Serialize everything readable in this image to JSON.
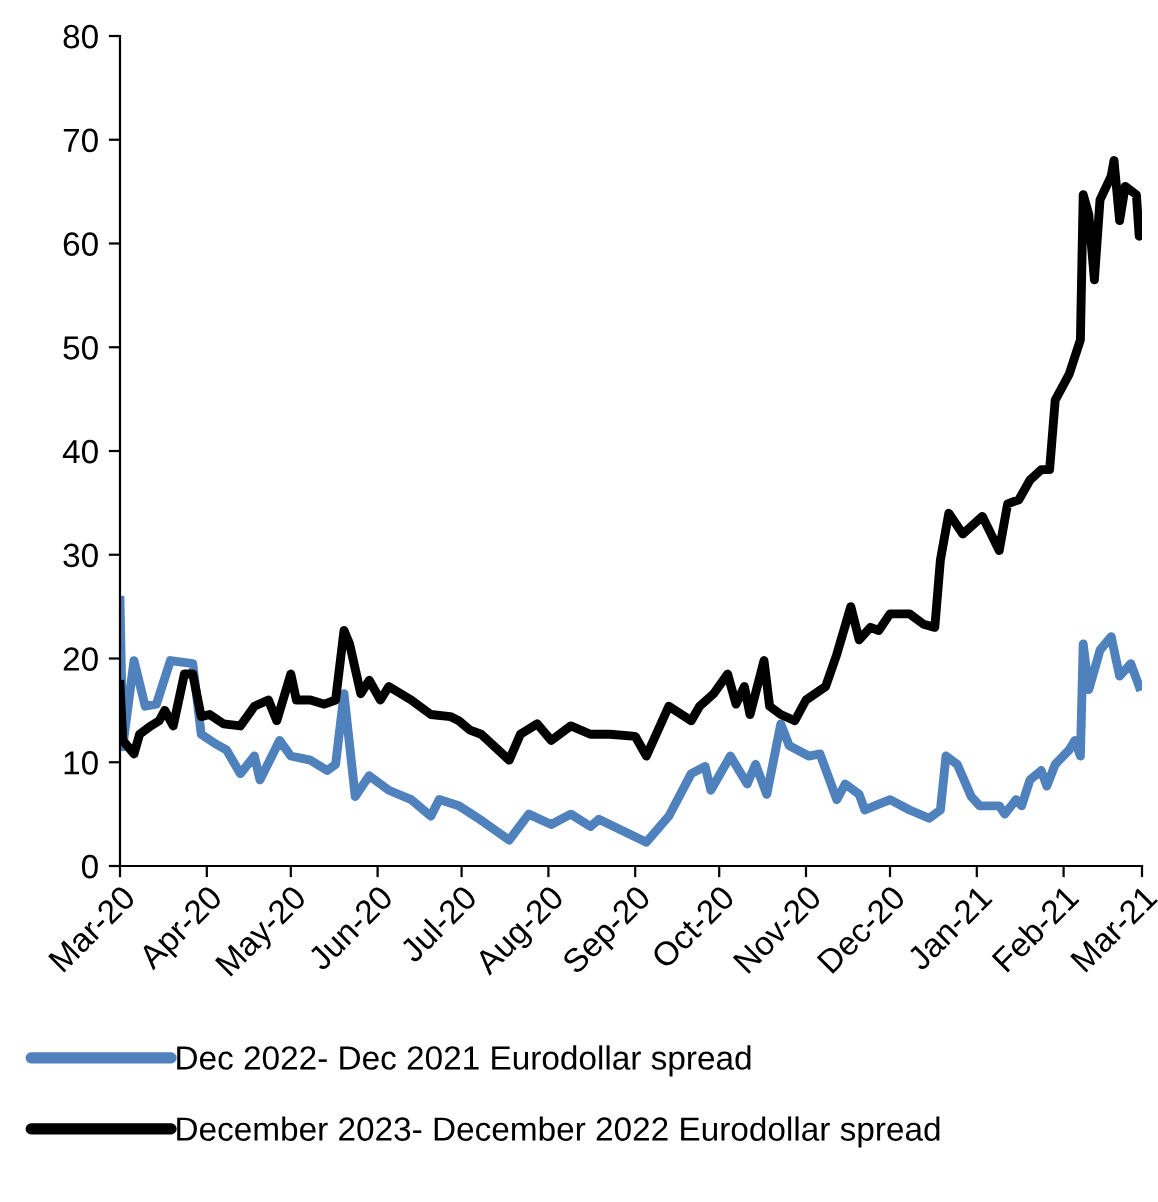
{
  "chart_data": {
    "type": "line",
    "xlim": [
      "2020-03-01",
      "2021-03-01"
    ],
    "ylim": [
      0,
      80
    ],
    "yticks": [
      0,
      10,
      20,
      30,
      40,
      50,
      60,
      70,
      80
    ],
    "xticks": [
      {
        "value": "2020-03-01",
        "label": "Mar-20"
      },
      {
        "value": "2020-04-01",
        "label": "Apr-20"
      },
      {
        "value": "2020-05-01",
        "label": "May-20"
      },
      {
        "value": "2020-06-01",
        "label": "Jun-20"
      },
      {
        "value": "2020-07-01",
        "label": "Jul-20"
      },
      {
        "value": "2020-08-01",
        "label": "Aug-20"
      },
      {
        "value": "2020-09-01",
        "label": "Sep-20"
      },
      {
        "value": "2020-10-01",
        "label": "Oct-20"
      },
      {
        "value": "2020-11-01",
        "label": "Nov-20"
      },
      {
        "value": "2020-12-01",
        "label": "Dec-20"
      },
      {
        "value": "2021-01-01",
        "label": "Jan-21"
      },
      {
        "value": "2021-02-01",
        "label": "Feb-21"
      },
      {
        "value": "2021-03-01",
        "label": "Mar-21"
      }
    ],
    "grid": false,
    "legend": "bottom",
    "marker": "none",
    "line_style": "solid",
    "series": [
      {
        "name": "Dec 2022- Dec 2021 Eurodollar spread",
        "color": "#4f81bd",
        "x": [
          "2020-03-01",
          "2020-03-02",
          "2020-03-06",
          "2020-03-10",
          "2020-03-14",
          "2020-03-19",
          "2020-03-27",
          "2020-03-30",
          "2020-04-04",
          "2020-04-08",
          "2020-04-13",
          "2020-04-18",
          "2020-04-20",
          "2020-04-27",
          "2020-05-01",
          "2020-05-08",
          "2020-05-14",
          "2020-05-17",
          "2020-05-20",
          "2020-05-24",
          "2020-05-29",
          "2020-06-05",
          "2020-06-13",
          "2020-06-20",
          "2020-06-23",
          "2020-06-30",
          "2020-07-08",
          "2020-07-18",
          "2020-07-25",
          "2020-08-02",
          "2020-08-09",
          "2020-08-16",
          "2020-08-19",
          "2020-09-05",
          "2020-09-13",
          "2020-09-21",
          "2020-09-26",
          "2020-09-28",
          "2020-10-05",
          "2020-10-11",
          "2020-10-14",
          "2020-10-18",
          "2020-10-23",
          "2020-10-26",
          "2020-11-02",
          "2020-11-06",
          "2020-11-12",
          "2020-11-15",
          "2020-11-20",
          "2020-11-22",
          "2020-12-01",
          "2020-12-08",
          "2020-12-15",
          "2020-12-19",
          "2020-12-21",
          "2020-12-25",
          "2020-12-30",
          "2021-01-02",
          "2021-01-09",
          "2021-01-11",
          "2021-01-15",
          "2021-01-17",
          "2021-01-20",
          "2021-01-24",
          "2021-01-26",
          "2021-01-29",
          "2021-02-03",
          "2021-02-05",
          "2021-02-07",
          "2021-02-08",
          "2021-02-10",
          "2021-02-14",
          "2021-02-18",
          "2021-02-21",
          "2021-02-25",
          "2021-02-28"
        ],
        "values": [
          25.6,
          11.5,
          19.8,
          15.4,
          15.6,
          19.8,
          19.5,
          12.7,
          11.8,
          11.2,
          8.9,
          10.6,
          8.3,
          12.1,
          10.6,
          10.2,
          9.2,
          9.8,
          16.6,
          6.7,
          8.7,
          7.3,
          6.4,
          4.8,
          6.4,
          5.8,
          4.4,
          2.5,
          5,
          4,
          5,
          3.8,
          4.5,
          2.3,
          4.8,
          8.9,
          9.6,
          7.3,
          10.6,
          7.9,
          9.8,
          6.9,
          13.7,
          11.6,
          10.6,
          10.8,
          6.4,
          7.9,
          6.9,
          5.4,
          6.4,
          5.4,
          4.6,
          5.4,
          10.6,
          9.8,
          6.7,
          5.8,
          5.8,
          5.0,
          6.4,
          5.8,
          8.3,
          9.2,
          7.7,
          9.8,
          11.2,
          12.1,
          10.6,
          21.4,
          17,
          20.8,
          22.1,
          18.3,
          19.5,
          17.3
        ]
      },
      {
        "name": "December 2023- December 2022 Eurodollar spread",
        "color": "#000000",
        "x": [
          "2020-03-01",
          "2020-03-02",
          "2020-03-06",
          "2020-03-08",
          "2020-03-12",
          "2020-03-15",
          "2020-03-17",
          "2020-03-20",
          "2020-03-24",
          "2020-03-27",
          "2020-03-30",
          "2020-04-02",
          "2020-04-07",
          "2020-04-13",
          "2020-04-18",
          "2020-04-23",
          "2020-04-26",
          "2020-05-01",
          "2020-05-03",
          "2020-05-08",
          "2020-05-13",
          "2020-05-17",
          "2020-05-20",
          "2020-05-22",
          "2020-05-26",
          "2020-05-29",
          "2020-06-02",
          "2020-06-05",
          "2020-06-13",
          "2020-06-20",
          "2020-06-27",
          "2020-06-30",
          "2020-07-04",
          "2020-07-08",
          "2020-07-18",
          "2020-07-22",
          "2020-07-28",
          "2020-08-02",
          "2020-08-09",
          "2020-08-16",
          "2020-08-23",
          "2020-09-01",
          "2020-09-05",
          "2020-09-13",
          "2020-09-21",
          "2020-09-24",
          "2020-09-29",
          "2020-10-04",
          "2020-10-07",
          "2020-10-10",
          "2020-10-12",
          "2020-10-17",
          "2020-10-19",
          "2020-10-23",
          "2020-10-28",
          "2020-11-01",
          "2020-11-08",
          "2020-11-12",
          "2020-11-17",
          "2020-11-20",
          "2020-11-24",
          "2020-11-27",
          "2020-12-01",
          "2020-12-08",
          "2020-12-13",
          "2020-12-17",
          "2020-12-19",
          "2020-12-22",
          "2020-12-27",
          "2021-01-03",
          "2021-01-09",
          "2021-01-12",
          "2021-01-16",
          "2021-01-20",
          "2021-01-24",
          "2021-01-27",
          "2021-01-29",
          "2021-02-03",
          "2021-02-07",
          "2021-02-08",
          "2021-02-10",
          "2021-02-12",
          "2021-02-14",
          "2021-02-18",
          "2021-02-19",
          "2021-02-21",
          "2021-02-23",
          "2021-02-27",
          "2021-02-28",
          "2021-03-01"
        ],
        "values": [
          17.5,
          12.1,
          10.8,
          12.7,
          13.5,
          14,
          15,
          13.5,
          18.5,
          18.5,
          14.4,
          14.6,
          13.7,
          13.5,
          15.4,
          16,
          14,
          18.5,
          16,
          16,
          15.6,
          16,
          22.7,
          21.4,
          16.6,
          17.9,
          16,
          17.3,
          16,
          14.6,
          14.4,
          14,
          13.1,
          12.7,
          10.2,
          12.7,
          13.7,
          12.1,
          13.5,
          12.7,
          12.7,
          12.5,
          10.6,
          15.4,
          14,
          15.4,
          16.6,
          18.5,
          15.6,
          17.3,
          14.6,
          19.8,
          15.4,
          14.6,
          14,
          16,
          17.3,
          20.4,
          25,
          21.8,
          23,
          22.7,
          24.3,
          24.3,
          23.3,
          23,
          29.5,
          34,
          32,
          33.7,
          30.4,
          34.9,
          35.3,
          37.2,
          38.2,
          38.2,
          44.9,
          47.4,
          50.7,
          64.7,
          62.8,
          56.5,
          64.2,
          66.5,
          68,
          62.2,
          65.5,
          64.7,
          60.7,
          62.6
        ]
      }
    ]
  }
}
